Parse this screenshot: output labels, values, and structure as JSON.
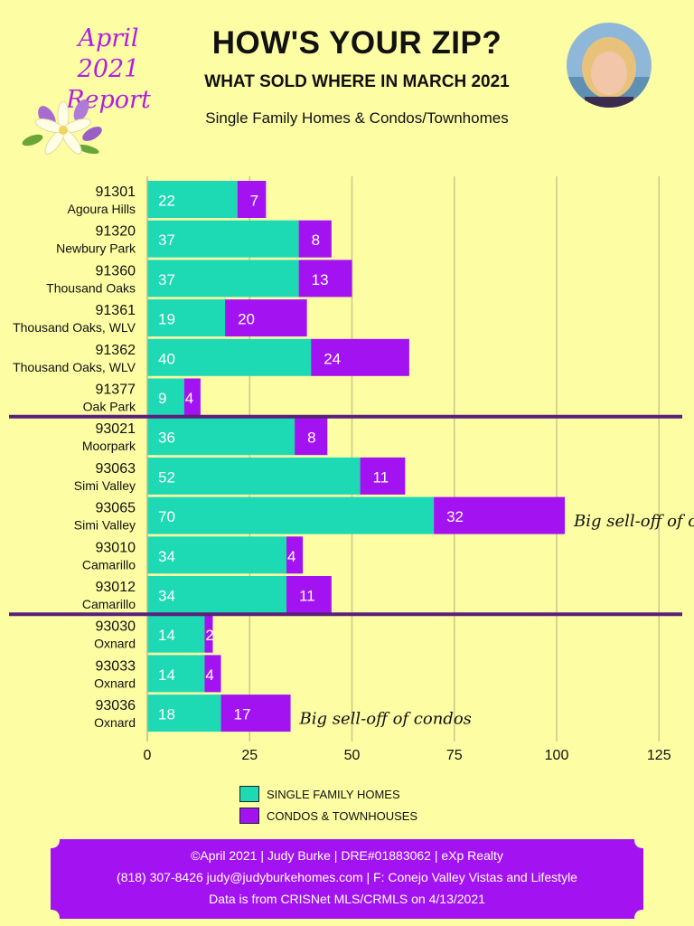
{
  "header": {
    "report_label_line1": "April 2021",
    "report_label_line2": "Report",
    "title": "HOW'S YOUR ZIP?",
    "subtitle": "WHAT SOLD WHERE IN MARCH 2021",
    "tagline": "Single Family Homes & Condos/Townhomes"
  },
  "chart_data": {
    "type": "bar",
    "orientation": "horizontal",
    "stacked": true,
    "categories": [
      {
        "zip": "91301",
        "city": "Agoura Hills"
      },
      {
        "zip": "91320",
        "city": "Newbury Park"
      },
      {
        "zip": "91360",
        "city": "Thousand Oaks"
      },
      {
        "zip": "91361",
        "city": "Thousand Oaks, WLV"
      },
      {
        "zip": "91362",
        "city": "Thousand Oaks, WLV"
      },
      {
        "zip": "91377",
        "city": "Oak Park"
      },
      {
        "zip": "93021",
        "city": "Moorpark"
      },
      {
        "zip": "93063",
        "city": "Simi Valley"
      },
      {
        "zip": "93065",
        "city": "Simi Valley"
      },
      {
        "zip": "93010",
        "city": "Camarillo"
      },
      {
        "zip": "93012",
        "city": "Camarillo"
      },
      {
        "zip": "93030",
        "city": "Oxnard"
      },
      {
        "zip": "93033",
        "city": "Oxnard"
      },
      {
        "zip": "93036",
        "city": "Oxnard"
      }
    ],
    "series": [
      {
        "name": "SINGLE FAMILY HOMES",
        "color": "#1dd9b4",
        "values": [
          22,
          37,
          37,
          19,
          40,
          9,
          36,
          52,
          70,
          34,
          34,
          14,
          14,
          18
        ]
      },
      {
        "name": "CONDOS & TOWNHOUSES",
        "color": "#a313f2",
        "values": [
          7,
          8,
          13,
          20,
          24,
          4,
          8,
          11,
          32,
          4,
          11,
          2,
          4,
          17
        ]
      }
    ],
    "xlim": [
      0,
      125
    ],
    "xticks": [
      0,
      25,
      50,
      75,
      100,
      125
    ],
    "grid": true,
    "group_dividers_after": [
      5,
      10
    ],
    "annotations": [
      {
        "text": "Big sell-off of condos",
        "category_index": 8
      },
      {
        "text": "Big sell-off of condos",
        "category_index": 13
      }
    ],
    "legend": "bottom-center"
  },
  "footer": {
    "line1": "©April 2021  |  Judy Burke  |  DRE#01883062  |  eXp Realty",
    "line2": "(818) 307-8426  judy@judyburkehomes.com | F: Conejo Valley Vistas and Lifestyle",
    "line3": "Data is from CRISNet MLS/CRMLS on 4/13/2021",
    "color": "#a313f2"
  }
}
